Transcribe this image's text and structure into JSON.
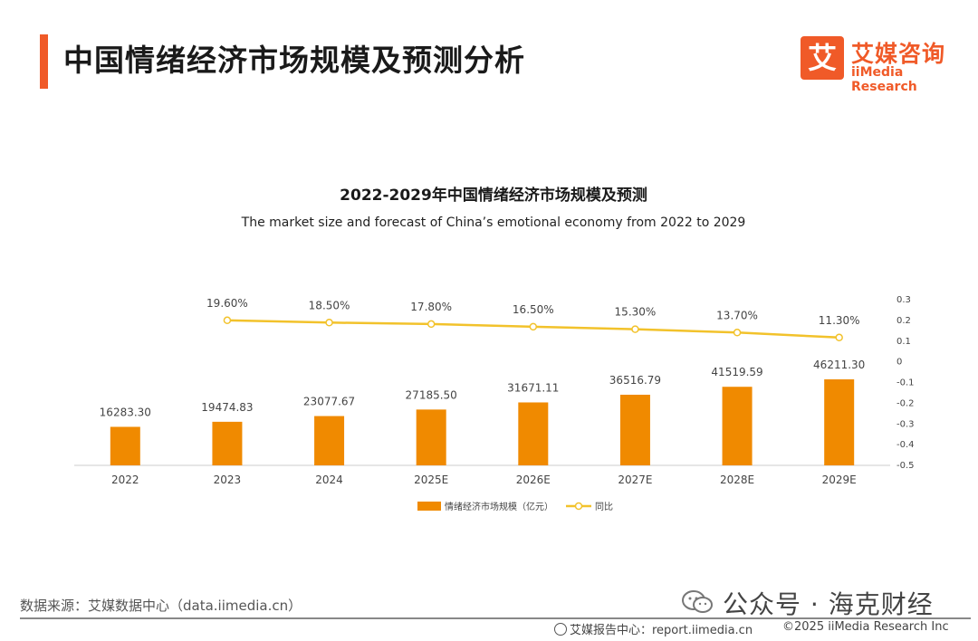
{
  "page": {
    "title": "中国情绪经济市场规模及预测分析"
  },
  "logo": {
    "mark": "艾",
    "name_cn": "艾媒咨询",
    "name_en": "iiMedia Research"
  },
  "chart_data": {
    "type": "bar",
    "title": "2022-2029年中国情绪经济市场规模及预测",
    "subtitle": "The market size and forecast of China’s emotional economy from 2022 to 2029",
    "categories": [
      "2022",
      "2023",
      "2024",
      "2025E",
      "2026E",
      "2027E",
      "2028E",
      "2029E"
    ],
    "series": [
      {
        "name": "情绪经济市场规模（亿元）",
        "type": "bar",
        "axis": "left",
        "values": [
          16283.3,
          19474.83,
          23077.67,
          27185.5,
          31671.11,
          36516.79,
          41519.59,
          46211.3
        ],
        "labels": [
          "16283.30",
          "19474.83",
          "23077.67",
          "27185.50",
          "31671.11",
          "36516.79",
          "41519.59",
          "46211.30"
        ],
        "color": "#f08a00"
      },
      {
        "name": "同比",
        "type": "line",
        "axis": "right",
        "values": [
          null,
          0.196,
          0.185,
          0.178,
          0.165,
          0.153,
          0.137,
          0.113
        ],
        "labels": [
          "",
          "19.60%",
          "18.50%",
          "17.80%",
          "16.50%",
          "15.30%",
          "13.70%",
          "11.30%"
        ],
        "color": "#f2c22b"
      }
    ],
    "y2_ticks": [
      "0.3",
      "0.2",
      "0.1",
      "0",
      "-0.1",
      "-0.2",
      "-0.3",
      "-0.4",
      "-0.5"
    ],
    "y2lim": [
      -0.5,
      0.3
    ],
    "legend_position": "bottom-center",
    "grid": false
  },
  "footer": {
    "source": "数据来源：艾媒数据中心（data.iimedia.cn）",
    "watermark": "公众号 · 海克财经",
    "report_center": "艾媒报告中心：report.iimedia.cn",
    "copyright": "©2025  iiMedia Research  Inc"
  }
}
